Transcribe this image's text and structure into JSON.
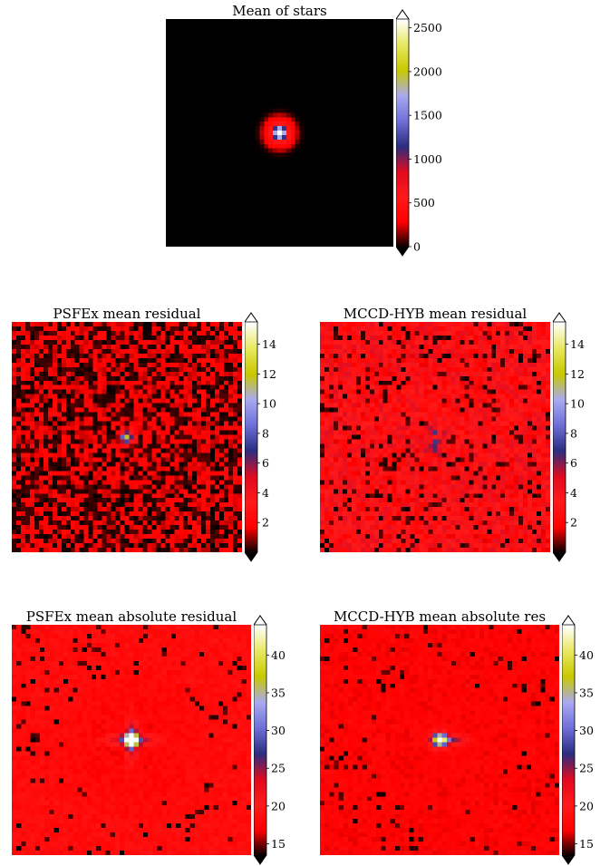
{
  "colors": {
    "colormap": [
      "#000000",
      "#ff0000",
      "#ff1a1a",
      "#e00a1f",
      "#2a2e80",
      "#6f6fd8",
      "#a9a9f0",
      "#c8c800",
      "#e8e860",
      "#ffffff"
    ]
  },
  "chart_data": [
    {
      "type": "heatmap",
      "title": "Mean of stars",
      "colorbar_ticks": [
        0,
        500,
        1000,
        1500,
        2000,
        2500
      ],
      "vmin": 0,
      "vmax": 2600,
      "pattern": "central-psf"
    },
    {
      "type": "heatmap",
      "title": "PSFEx mean residual",
      "colorbar_ticks": [
        2,
        4,
        6,
        8,
        10,
        12,
        14
      ],
      "vmin": 0,
      "vmax": 15.5,
      "pattern": "noisy-residual-center-spot"
    },
    {
      "type": "heatmap",
      "title": "MCCD-HYB mean residual",
      "colorbar_ticks": [
        2,
        4,
        6,
        8,
        10,
        12,
        14
      ],
      "vmin": 0,
      "vmax": 15.5,
      "pattern": "noisy-residual-weak-center"
    },
    {
      "type": "heatmap",
      "title": "PSFEx mean absolute residual",
      "colorbar_ticks": [
        15,
        20,
        25,
        30,
        35,
        40
      ],
      "vmin": 13.5,
      "vmax": 44,
      "pattern": "abs-residual-center-cross"
    },
    {
      "type": "heatmap",
      "title": "MCCD-HYB mean absolute res",
      "colorbar_ticks": [
        15,
        20,
        25,
        30,
        35,
        40
      ],
      "vmin": 13.5,
      "vmax": 44,
      "pattern": "abs-residual-center-spot"
    }
  ]
}
